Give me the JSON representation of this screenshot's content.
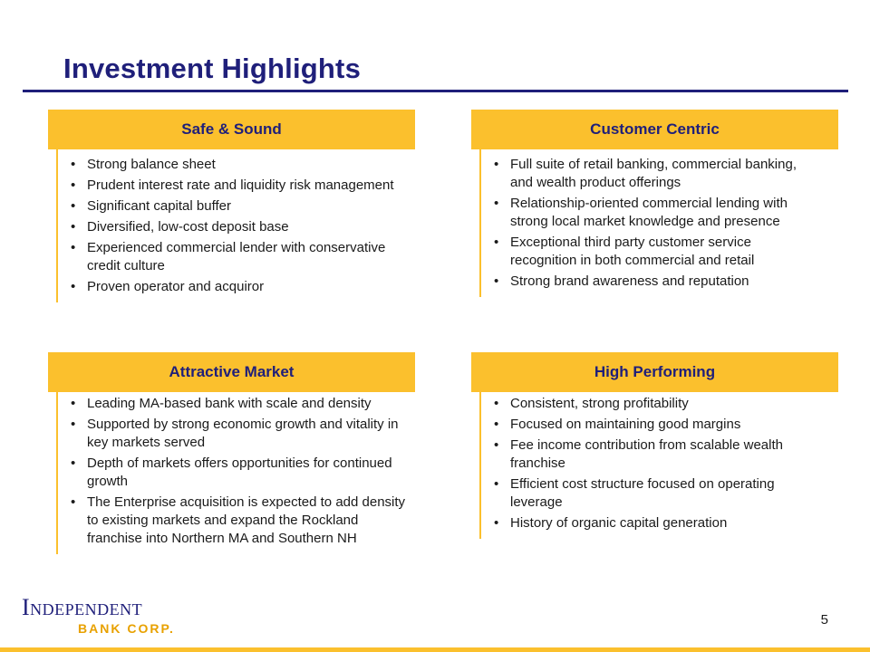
{
  "title": "Investment Highlights",
  "panels": [
    {
      "heading": "Safe & Sound",
      "bullets": [
        "Strong balance sheet",
        "Prudent interest rate and liquidity risk management",
        "Significant capital buffer",
        "Diversified, low-cost deposit base",
        "Experienced commercial lender with conservative credit culture",
        "Proven operator and acquiror"
      ]
    },
    {
      "heading": "Customer Centric",
      "bullets": [
        "Full suite of retail banking, commercial banking, and wealth product offerings",
        "Relationship-oriented commercial lending with strong local market knowledge and presence",
        "Exceptional third party customer service recognition in both commercial and retail",
        "Strong brand awareness and reputation"
      ]
    },
    {
      "heading": "Attractive Market",
      "bullets": [
        "Leading MA-based bank with scale and density",
        "Supported by strong economic growth and vitality in key markets served",
        "Depth of markets offers opportunities for continued growth",
        "The Enterprise acquisition is expected to add density to existing markets and expand the Rockland franchise into Northern MA and Southern NH"
      ]
    },
    {
      "heading": "High Performing",
      "bullets": [
        "Consistent, strong profitability",
        "Focused on maintaining good margins",
        "Fee income contribution from scalable wealth franchise",
        "Efficient cost structure focused on operating leverage",
        "History of organic capital generation"
      ]
    }
  ],
  "logo": {
    "line1": "Independent",
    "line2": "BANK CORP."
  },
  "page_number": "5",
  "colors": {
    "navy": "#1F1F7A",
    "gold": "#FBC02D"
  },
  "bullet_glyph": "•"
}
